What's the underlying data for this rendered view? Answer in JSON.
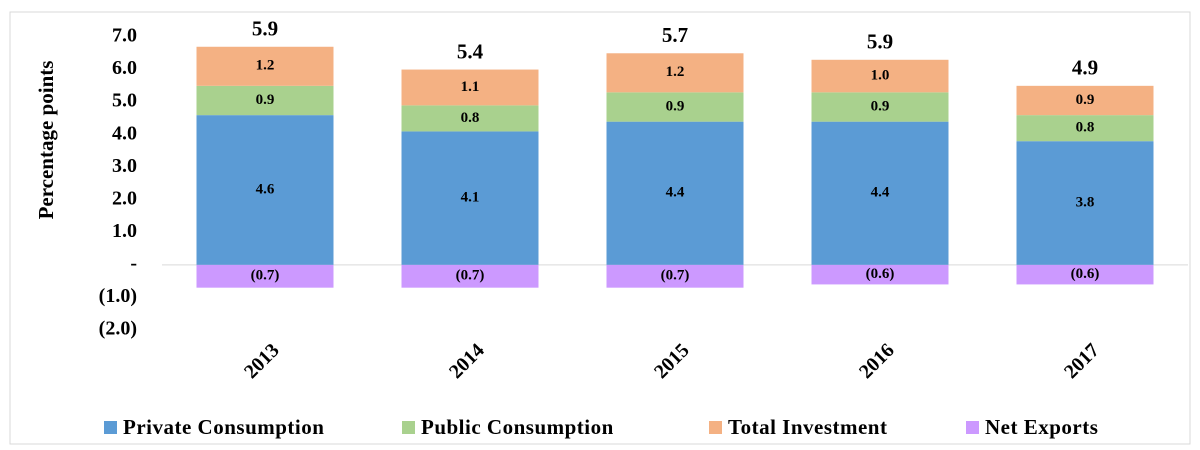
{
  "chart_data": {
    "type": "stacked_bar",
    "y_axis_label": "Percentage points",
    "categories": [
      "2013",
      "2014",
      "2015",
      "2016",
      "2017"
    ],
    "series": [
      {
        "name": "Private Consumption",
        "color": "#5b9bd5",
        "values": [
          4.6,
          4.1,
          4.4,
          4.4,
          3.8
        ]
      },
      {
        "name": "Public Consumption",
        "color": "#a9d18e",
        "values": [
          0.9,
          0.8,
          0.9,
          0.9,
          0.8
        ]
      },
      {
        "name": "Total Investment",
        "color": "#f4b183",
        "values": [
          1.2,
          1.1,
          1.2,
          1.0,
          0.9
        ],
        "value_labels": [
          "1.2",
          "1.1",
          "1.2",
          "1.0",
          "0.9"
        ]
      },
      {
        "name": "Net Exports",
        "color": "#cc99ff",
        "values": [
          -0.7,
          -0.7,
          -0.7,
          -0.6,
          -0.6
        ],
        "value_labels": [
          "(0.7)",
          "(0.7)",
          "(0.7)",
          "(0.6)",
          "(0.6)"
        ]
      }
    ],
    "totals": [
      5.9,
      5.4,
      5.7,
      5.9,
      4.9
    ],
    "ylim": [
      -2,
      7
    ],
    "yticks": [
      {
        "value": 7,
        "label": "7.0"
      },
      {
        "value": 6,
        "label": "6.0"
      },
      {
        "value": 5,
        "label": "5.0"
      },
      {
        "value": 4,
        "label": "4.0"
      },
      {
        "value": 3,
        "label": "3.0"
      },
      {
        "value": 2,
        "label": "2.0"
      },
      {
        "value": 1,
        "label": "1.0"
      },
      {
        "value": 0,
        "label": "-"
      },
      {
        "value": -1,
        "label": "(1.0)"
      },
      {
        "value": -2,
        "label": "(2.0)"
      }
    ],
    "grid": false
  }
}
